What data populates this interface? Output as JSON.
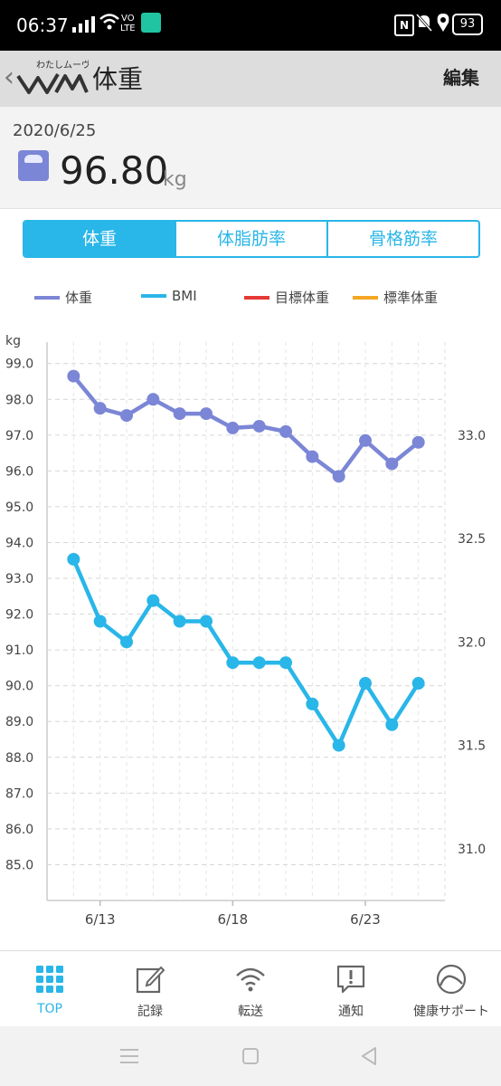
{
  "status_bar": {
    "time": "06:37",
    "volte": "VO\nLTE",
    "nfc": "N",
    "battery": "93"
  },
  "app_bar": {
    "back_icon": "chevron-left-icon",
    "logo_text": "わたしムーヴ",
    "logo_mark": "WM",
    "title": "体重",
    "edit_label": "編集"
  },
  "summary": {
    "date": "2020/6/25",
    "value": "96.80",
    "unit": "kg",
    "icon": "scale-icon"
  },
  "tabs": [
    {
      "label": "体重",
      "active": true
    },
    {
      "label": "体脂肪率",
      "active": false
    },
    {
      "label": "骨格筋率",
      "active": false
    }
  ],
  "legend": [
    {
      "label": "体重",
      "color": "#7b86d6"
    },
    {
      "label": "BMI",
      "color": "#29b6e8"
    },
    {
      "label": "目標体重",
      "color": "#e53935"
    },
    {
      "label": "標準体重",
      "color": "#f5a623"
    }
  ],
  "chart_data": {
    "type": "line",
    "y_left_unit": "kg",
    "y_left_ticks": [
      "99.0",
      "98.0",
      "97.0",
      "96.0",
      "95.0",
      "94.0",
      "93.0",
      "92.0",
      "91.0",
      "90.0",
      "89.0",
      "88.0",
      "87.0",
      "86.0",
      "85.0"
    ],
    "y_left_range": [
      84.0,
      99.6
    ],
    "y_right_ticks": [
      "33.0",
      "32.5",
      "32.0",
      "31.5",
      "31.0"
    ],
    "y_right_range": [
      30.75,
      33.45
    ],
    "x_day_range": [
      11,
      26
    ],
    "x_ticks": [
      {
        "day": 13,
        "label": "6/13"
      },
      {
        "day": 18,
        "label": "6/18"
      },
      {
        "day": 23,
        "label": "6/23"
      }
    ],
    "grid": true,
    "series": [
      {
        "name": "体重",
        "axis": "left",
        "color": "#7b86d6",
        "x": [
          12,
          13,
          14,
          15,
          16,
          17,
          18,
          19,
          20,
          21,
          22,
          23,
          24,
          25
        ],
        "values": [
          98.65,
          97.75,
          97.55,
          98.0,
          97.6,
          97.6,
          97.2,
          97.25,
          97.1,
          96.4,
          95.85,
          96.85,
          96.2,
          96.8
        ]
      },
      {
        "name": "BMI",
        "axis": "right",
        "color": "#29b6e8",
        "x": [
          12,
          13,
          14,
          15,
          16,
          17,
          18,
          19,
          20,
          21,
          22,
          23,
          24,
          25
        ],
        "values": [
          32.4,
          32.1,
          32.0,
          32.2,
          32.1,
          32.1,
          31.9,
          31.9,
          31.9,
          31.7,
          31.5,
          31.8,
          31.6,
          31.8
        ]
      }
    ]
  },
  "bottom_nav": [
    {
      "label": "TOP",
      "icon": "grid-icon",
      "active": true
    },
    {
      "label": "記録",
      "icon": "edit-icon",
      "active": false
    },
    {
      "label": "転送",
      "icon": "wifi-icon",
      "active": false
    },
    {
      "label": "通知",
      "icon": "notice-icon",
      "active": false
    },
    {
      "label": "健康サポート",
      "icon": "health-support-icon",
      "active": false
    }
  ],
  "system_nav": [
    "menu-icon",
    "home-icon",
    "back-triangle-icon"
  ]
}
